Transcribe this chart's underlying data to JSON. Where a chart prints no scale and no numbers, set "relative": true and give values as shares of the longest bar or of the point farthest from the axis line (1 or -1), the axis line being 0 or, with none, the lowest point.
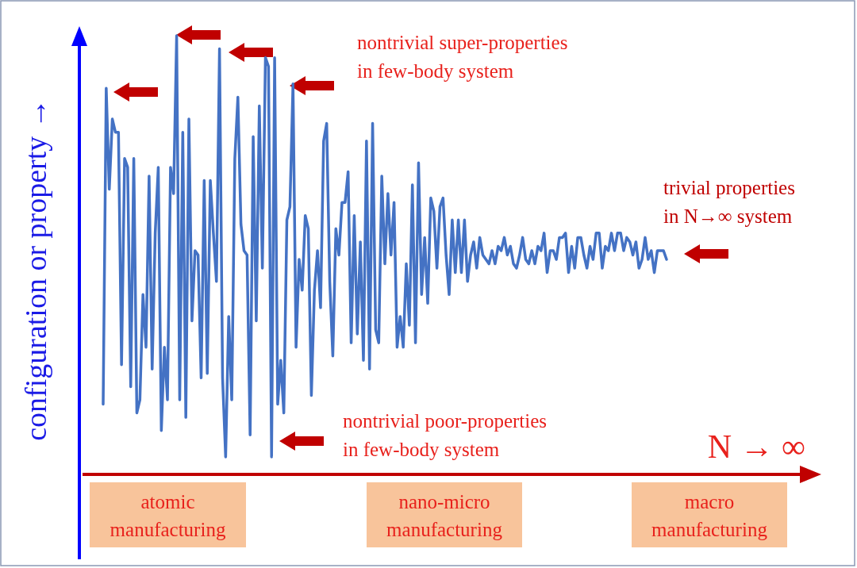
{
  "chart_data": {
    "type": "line",
    "relative": true,
    "ylabel": "configuration or property →",
    "xlabel": "N → ∞",
    "annotations": [
      "nontrivial super-properties\nin few-body system",
      "trivial properties\nin N→∞ system",
      "nontrivial poor-properties\nin few-body system",
      "atomic\nmanufacturing",
      "nano-micro\nmanufacturing",
      "macro\nmanufacturing"
    ],
    "categories": [
      null,
      null,
      null,
      null,
      null,
      null,
      null,
      null,
      null,
      null,
      null,
      null,
      null,
      null,
      null,
      null,
      null,
      null,
      null,
      null,
      null,
      null,
      null,
      null,
      null,
      null,
      null,
      null,
      null,
      null,
      null,
      null,
      null,
      null,
      null,
      null,
      null,
      null,
      null,
      null,
      null,
      null,
      null,
      null,
      null,
      null,
      null,
      null,
      null,
      null,
      null,
      null,
      null,
      null,
      null,
      null,
      null,
      null,
      null,
      null,
      null,
      null,
      null,
      null,
      null,
      null,
      null,
      null,
      null,
      null,
      null,
      null,
      null,
      null,
      null,
      null,
      null,
      null,
      null,
      null,
      null,
      null,
      null,
      null,
      null,
      null,
      null,
      null,
      null,
      null,
      null,
      null,
      null,
      null,
      null,
      null,
      null,
      null,
      null,
      null,
      null,
      null,
      null,
      null,
      null,
      null,
      null,
      null,
      null,
      null,
      null,
      null,
      null,
      null,
      null,
      null,
      null,
      null,
      null,
      null,
      null,
      null,
      null,
      null,
      null,
      null,
      null,
      null,
      null,
      null,
      null,
      null,
      null,
      null,
      null,
      null,
      null,
      null,
      null,
      null,
      null,
      null,
      null,
      null,
      null,
      null,
      null,
      null,
      null,
      null,
      null,
      null,
      null,
      null,
      null,
      null,
      null,
      null,
      null,
      null,
      null,
      null,
      null,
      null,
      null,
      null,
      null,
      null,
      null,
      null,
      null,
      null,
      null,
      null,
      null,
      null,
      null,
      null,
      null,
      null,
      null,
      null,
      null,
      null,
      null
    ],
    "series": [
      {
        "color": "#4472c4",
        "values": [
          0.16,
          0.88,
          0.65,
          0.81,
          0.78,
          0.78,
          0.25,
          0.72,
          0.7,
          0.2,
          0.72,
          0.14,
          0.17,
          0.41,
          0.29,
          0.68,
          0.24,
          0.55,
          0.7,
          0.1,
          0.29,
          0.17,
          0.7,
          0.64,
          1.0,
          0.17,
          0.78,
          0.13,
          0.81,
          0.35,
          0.51,
          0.5,
          0.22,
          0.67,
          0.23,
          0.67,
          0.55,
          0.44,
          0.97,
          0.22,
          0.04,
          0.36,
          0.17,
          0.72,
          0.86,
          0.57,
          0.51,
          0.5,
          0.09,
          0.77,
          0.35,
          0.84,
          0.47,
          0.95,
          0.93,
          0.04,
          0.95,
          0.16,
          0.26,
          0.14,
          0.58,
          0.61,
          0.89,
          0.29,
          0.49,
          0.42,
          0.59,
          0.56,
          0.18,
          0.42,
          0.51,
          0.38,
          0.76,
          0.8,
          0.44,
          0.27,
          0.56,
          0.5,
          0.62,
          0.62,
          0.69,
          0.3,
          0.59,
          0.32,
          0.53,
          0.26,
          0.76,
          0.24,
          0.8,
          0.33,
          0.3,
          0.68,
          0.48,
          0.64,
          0.5,
          0.62,
          0.29,
          0.36,
          0.29,
          0.48,
          0.34,
          0.66,
          0.3,
          0.71,
          0.41,
          0.54,
          0.39,
          0.63,
          0.6,
          0.47,
          0.61,
          0.63,
          0.5,
          0.41,
          0.58,
          0.46,
          0.58,
          0.46,
          0.58,
          0.44,
          0.5,
          0.53,
          0.47,
          0.54,
          0.5,
          0.49,
          0.48,
          0.51,
          0.48,
          0.52,
          0.51,
          0.54,
          0.5,
          0.52,
          0.48,
          0.47,
          0.5,
          0.54,
          0.49,
          0.48,
          0.51,
          0.48,
          0.52,
          0.51,
          0.55,
          0.46,
          0.51,
          0.51,
          0.49,
          0.54,
          0.54,
          0.55,
          0.46,
          0.52,
          0.47,
          0.54,
          0.54,
          0.5,
          0.47,
          0.52,
          0.49,
          0.55,
          0.55,
          0.47,
          0.52,
          0.51,
          0.55,
          0.51,
          0.55,
          0.55,
          0.51,
          0.54,
          0.53,
          0.5,
          0.53,
          0.47,
          0.49,
          0.54,
          0.49,
          0.51,
          0.46,
          0.51,
          0.51,
          0.51,
          0.49
        ]
      }
    ]
  }
}
